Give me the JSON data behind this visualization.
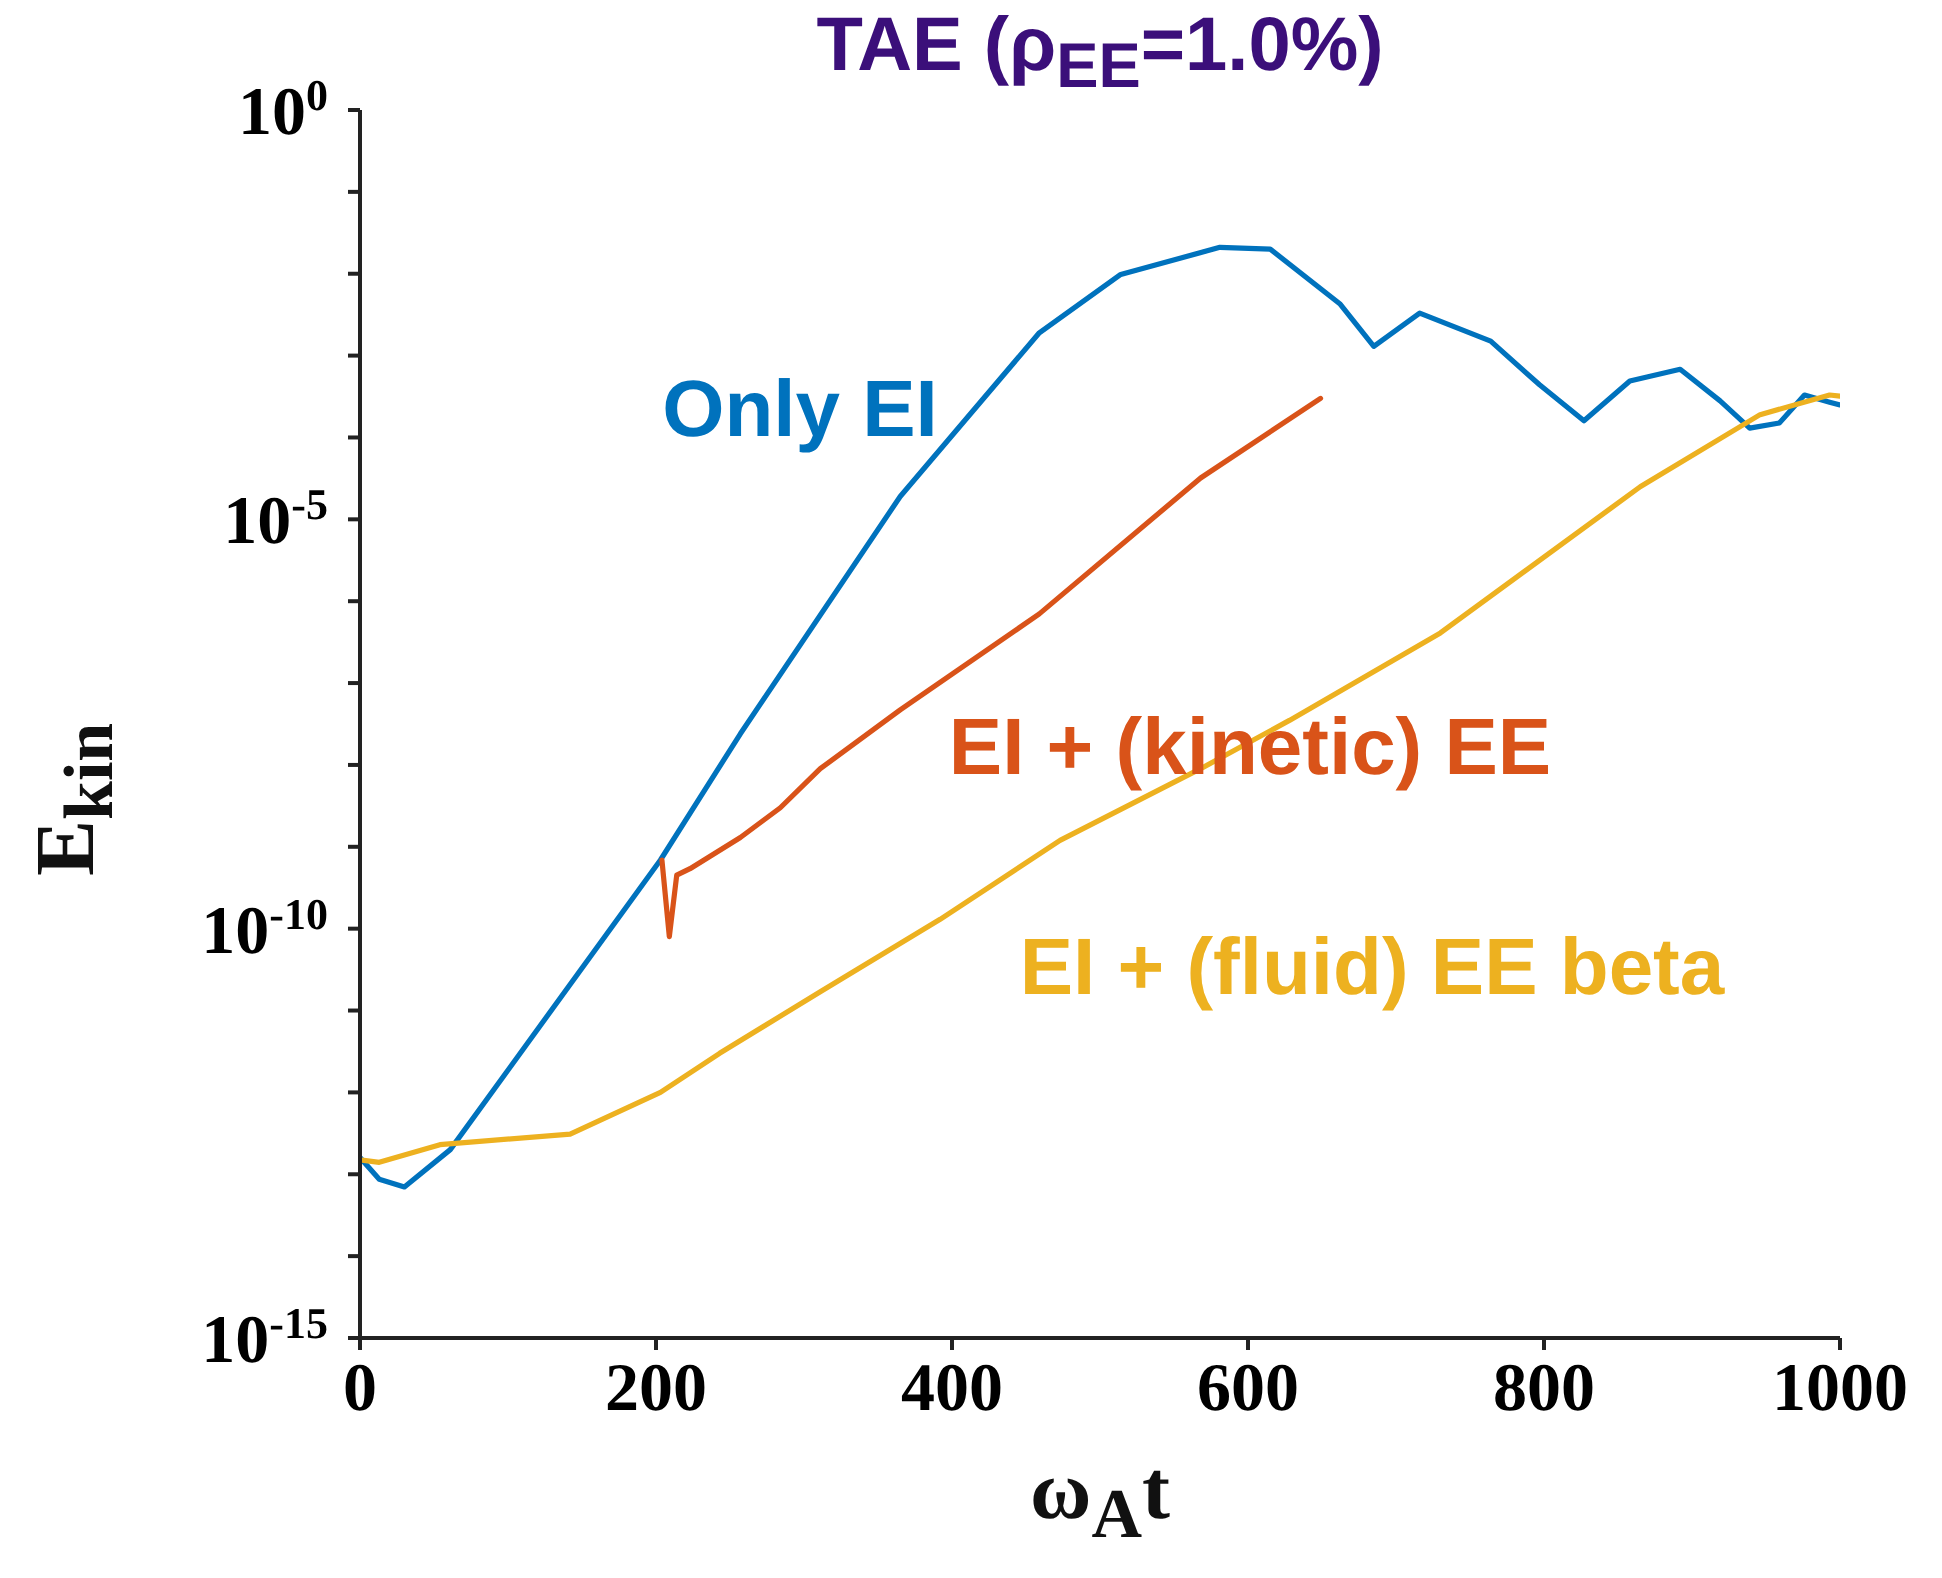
{
  "chart_data": {
    "type": "line",
    "title": "TAE (ρ$_{EE}$=1.0%)",
    "xlabel": "ω$_{A}$t",
    "ylabel": "E$_{kin}$",
    "log": "y",
    "xlim": [
      0,
      1000
    ],
    "xticks": [
      0,
      200,
      400,
      600,
      800,
      1000
    ],
    "ylim": [
      1e-15,
      1
    ],
    "yticks": [
      {
        "value": 1e-15,
        "label": "10$^{-15}$"
      },
      {
        "value": 1e-14,
        "label": null
      },
      {
        "value": 1e-13,
        "label": null
      },
      {
        "value": 1e-12,
        "label": null
      },
      {
        "value": 1e-11,
        "label": null
      },
      {
        "value": 1e-10,
        "label": "10$^{-10}$"
      },
      {
        "value": 1e-09,
        "label": null
      },
      {
        "value": 1e-08,
        "label": null
      },
      {
        "value": 1e-07,
        "label": null
      },
      {
        "value": 1e-06,
        "label": null
      },
      {
        "value": 1e-05,
        "label": "10$^{-5}$"
      },
      {
        "value": 0.0001,
        "label": null
      },
      {
        "value": 0.001,
        "label": null
      },
      {
        "value": 0.01,
        "label": null
      },
      {
        "value": 0.1,
        "label": null
      },
      {
        "value": 1,
        "label": "10$^{0}$"
      }
    ],
    "series": [
      {
        "name": "Only EI",
        "color": "#0072bd",
        "x": [
          0,
          13,
          30,
          61,
          203,
          257,
          365,
          459,
          514,
          581,
          615,
          662,
          685,
          716,
          764,
          797,
          827,
          858,
          892,
          919,
          939,
          959,
          976,
          993,
          1000
        ],
        "values": [
          1.6e-13,
          8.7e-14,
          7e-14,
          2e-13,
          6.9e-10,
          2.4e-08,
          1.9e-05,
          0.0019,
          0.0098,
          0.021,
          0.02,
          0.0043,
          0.0013,
          0.0033,
          0.0015,
          0.00044,
          0.00016,
          0.00049,
          0.00068,
          0.00028,
          0.00013,
          0.00015,
          0.00033,
          0.00027,
          0.00025
        ]
      },
      {
        "name": "EI + (kinetic) EE",
        "color": "#d95319",
        "x": [
          204,
          209,
          214,
          223,
          257,
          284,
          311,
          365,
          459,
          568,
          649
        ],
        "values": [
          6.9e-10,
          8e-11,
          4.5e-10,
          5.4e-10,
          1.3e-09,
          3e-09,
          9e-09,
          4.7e-08,
          7e-07,
          3.2e-05,
          0.0003
        ]
      },
      {
        "name": "EI + (fluid) EE beta",
        "color": "#edb120",
        "x": [
          0,
          13,
          54,
          142,
          203,
          243,
          311,
          392,
          473,
          568,
          628,
          730,
          865,
          946,
          993,
          1000
        ],
        "values": [
          1.5e-13,
          1.4e-13,
          2.3e-13,
          3.1e-13,
          1e-12,
          3e-12,
          1.7e-11,
          1.3e-10,
          1.2e-09,
          9e-09,
          3.5e-08,
          4.1e-07,
          2.5e-05,
          0.00019,
          0.00033,
          0.00032
        ]
      }
    ]
  }
}
